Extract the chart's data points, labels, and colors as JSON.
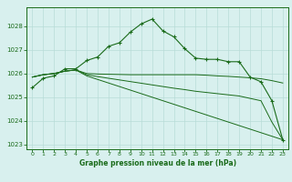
{
  "hours": [
    0,
    1,
    2,
    3,
    4,
    5,
    6,
    7,
    8,
    9,
    10,
    11,
    12,
    13,
    14,
    15,
    16,
    17,
    18,
    19,
    20,
    21,
    22,
    23
  ],
  "series1": [
    1025.4,
    1025.8,
    1025.9,
    1026.2,
    1026.2,
    1026.55,
    1026.7,
    1027.15,
    1027.3,
    1027.75,
    1028.1,
    1028.3,
    1027.8,
    1027.55,
    1027.05,
    1026.65,
    1026.6,
    1026.6,
    1026.5,
    1026.5,
    1025.85,
    1025.65,
    1024.85,
    1023.2
  ],
  "series2": [
    1025.85,
    1025.95,
    1026.0,
    1026.1,
    1026.15,
    1026.0,
    1025.98,
    1025.97,
    1025.96,
    1025.95,
    1025.95,
    1025.95,
    1025.95,
    1025.95,
    1025.95,
    1025.95,
    1025.93,
    1025.9,
    1025.88,
    1025.85,
    1025.82,
    1025.78,
    1025.7,
    1025.6
  ],
  "series3": [
    1025.85,
    1025.95,
    1026.0,
    1026.1,
    1026.15,
    1025.9,
    1025.75,
    1025.6,
    1025.45,
    1025.3,
    1025.15,
    1025.0,
    1024.85,
    1024.7,
    1024.55,
    1024.4,
    1024.25,
    1024.1,
    1023.95,
    1023.8,
    1023.65,
    1023.5,
    1023.35,
    1023.2
  ],
  "series4": [
    1025.85,
    1025.95,
    1026.0,
    1026.1,
    1026.15,
    1025.95,
    1025.87,
    1025.8,
    1025.73,
    1025.66,
    1025.59,
    1025.52,
    1025.45,
    1025.38,
    1025.32,
    1025.25,
    1025.2,
    1025.15,
    1025.1,
    1025.05,
    1024.95,
    1024.85,
    1023.95,
    1023.2
  ],
  "line_color": "#1a6b1a",
  "marker_color": "#1a6b1a",
  "bg_color": "#d8f0ee",
  "grid_color": "#b8dcd8",
  "axis_color": "#1a6b1a",
  "xlabel": "Graphe pression niveau de la mer (hPa)",
  "ylim": [
    1022.8,
    1028.8
  ],
  "xlim": [
    -0.5,
    23.5
  ],
  "yticks": [
    1023,
    1024,
    1025,
    1026,
    1027,
    1028
  ],
  "xticks": [
    0,
    1,
    2,
    3,
    4,
    5,
    6,
    7,
    8,
    9,
    10,
    11,
    12,
    13,
    14,
    15,
    16,
    17,
    18,
    19,
    20,
    21,
    22,
    23
  ]
}
